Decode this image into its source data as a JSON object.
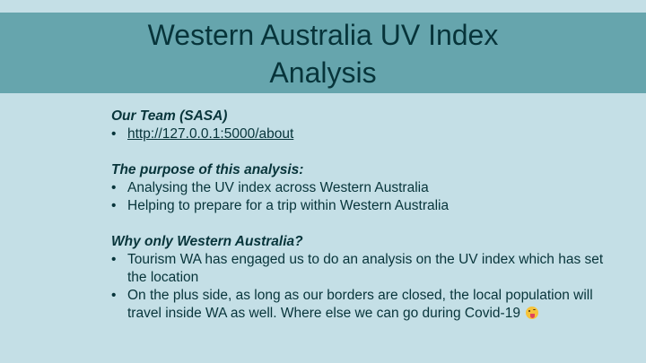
{
  "title": {
    "line1": "Western Australia UV Index",
    "line2": "Analysis"
  },
  "sections": [
    {
      "heading": "Our Team (SASA)",
      "items": [
        "http://127.0.0.1:5000/about"
      ]
    },
    {
      "heading": "The purpose of this analysis:",
      "items": [
        "Analysing the UV index across Western Australia",
        "Helping to prepare for a trip within Western Australia"
      ]
    },
    {
      "heading": "Why only Western Australia?",
      "items": [
        "Tourism WA has engaged us to do an analysis on the UV index which has set the location",
        "On the plus side, as long as our borders are closed, the local population will travel inside WA as well. Where else we can go during Covid-19"
      ]
    }
  ],
  "bullet_glyph": "•",
  "emoji_icon": "winking-face-with-tongue-icon",
  "colors": {
    "background": "#c4dfe6",
    "title_band": "#66a5ad",
    "text": "#07343a"
  }
}
